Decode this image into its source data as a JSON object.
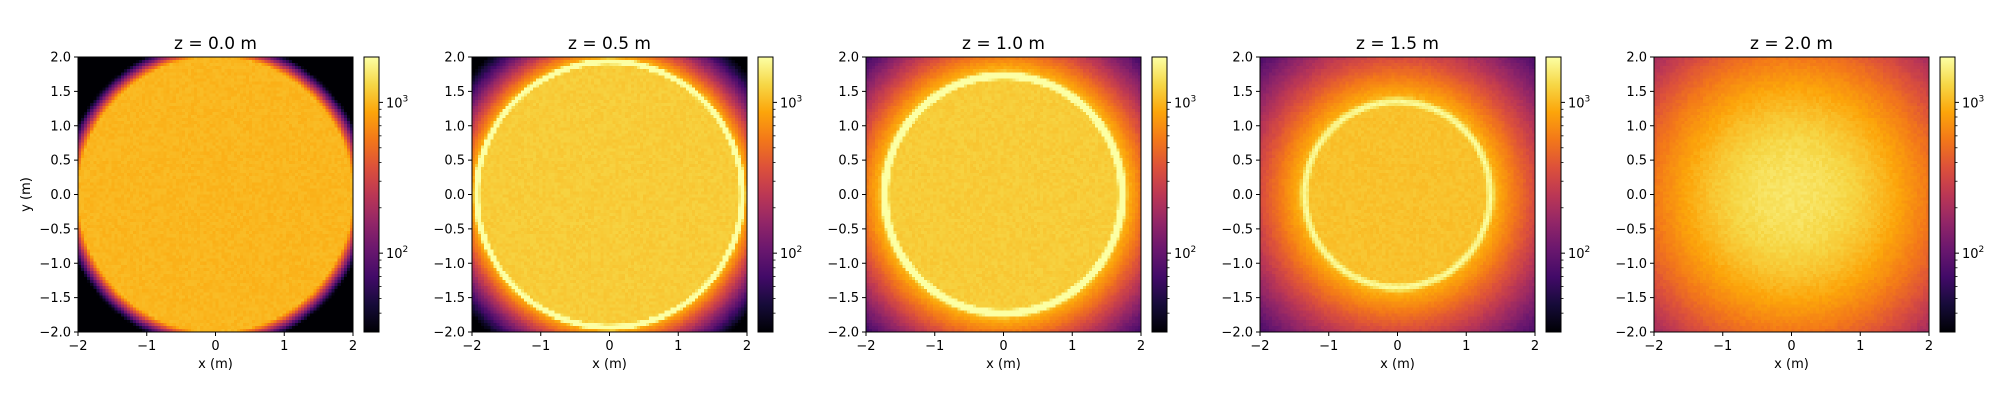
{
  "chart_data": [
    {
      "type": "heatmap",
      "title": "z = 0.0 m",
      "xlabel": "x (m)",
      "ylabel": "y (m)",
      "xlim": [
        -2,
        2
      ],
      "ylim": [
        -2,
        2
      ],
      "xticks": [
        "−2",
        "−1",
        "0",
        "1",
        "2"
      ],
      "yticks": [
        "2.0",
        "1.5",
        "1.0",
        "0.5",
        "0.0",
        "−0.5",
        "−1.0",
        "−1.5",
        "−2.0"
      ],
      "colorbar": {
        "scale": "log",
        "min": 30,
        "max": 2000,
        "ticks": [
          "10",
          "10"
        ],
        "tick_exponents": [
          "3",
          "2"
        ]
      },
      "field": {
        "plateau": 1000,
        "ring_radius": 2.0,
        "ring_width": 0.0,
        "ring_peak": 0,
        "edge_width": 0.07
      }
    },
    {
      "type": "heatmap",
      "title": "z = 0.5 m",
      "xlabel": "x (m)",
      "ylabel": "",
      "xlim": [
        -2,
        2
      ],
      "ylim": [
        -2,
        2
      ],
      "xticks": [
        "−2",
        "−1",
        "0",
        "1",
        "2"
      ],
      "yticks": [
        "2.0",
        "1.5",
        "1.0",
        "0.5",
        "0.0",
        "−0.5",
        "−1.0",
        "−1.5",
        "−2.0"
      ],
      "colorbar": {
        "scale": "log",
        "min": 30,
        "max": 2000,
        "ticks": [
          "10",
          "10"
        ],
        "tick_exponents": [
          "3",
          "2"
        ]
      },
      "field": {
        "plateau": 1200,
        "ring_radius": 1.93,
        "ring_width": 0.05,
        "ring_peak": 3000,
        "edge_width": 0.2
      }
    },
    {
      "type": "heatmap",
      "title": "z = 1.0 m",
      "xlabel": "x (m)",
      "ylabel": "",
      "xlim": [
        -2,
        2
      ],
      "ylim": [
        -2,
        2
      ],
      "xticks": [
        "−2",
        "−1",
        "0",
        "1",
        "2"
      ],
      "yticks": [
        "2.0",
        "1.5",
        "1.0",
        "0.5",
        "0.0",
        "−0.5",
        "−1.0",
        "−1.5",
        "−2.0"
      ],
      "colorbar": {
        "scale": "log",
        "min": 30,
        "max": 2000,
        "ticks": [
          "10",
          "10"
        ],
        "tick_exponents": [
          "3",
          "2"
        ]
      },
      "field": {
        "plateau": 1200,
        "ring_radius": 1.73,
        "ring_width": 0.07,
        "ring_peak": 3000,
        "edge_width": 0.38
      }
    },
    {
      "type": "heatmap",
      "title": "z = 1.5 m",
      "xlabel": "x (m)",
      "ylabel": "",
      "xlim": [
        -2,
        2
      ],
      "ylim": [
        -2,
        2
      ],
      "xticks": [
        "−2",
        "−1",
        "0",
        "1",
        "2"
      ],
      "yticks": [
        "2.0",
        "1.5",
        "1.0",
        "0.5",
        "0.0",
        "−0.5",
        "−1.0",
        "−1.5",
        "−2.0"
      ],
      "colorbar": {
        "scale": "log",
        "min": 30,
        "max": 2000,
        "ticks": [
          "10",
          "10"
        ],
        "tick_exponents": [
          "3",
          "2"
        ]
      },
      "field": {
        "plateau": 1100,
        "ring_radius": 1.35,
        "ring_width": 0.09,
        "ring_peak": 1900,
        "edge_width": 0.55
      }
    },
    {
      "type": "heatmap",
      "title": "z = 2.0 m",
      "xlabel": "x (m)",
      "ylabel": "",
      "xlim": [
        -2,
        2
      ],
      "ylim": [
        -2,
        2
      ],
      "xticks": [
        "−2",
        "−1",
        "0",
        "1",
        "2"
      ],
      "yticks": [
        "2.0",
        "1.5",
        "1.0",
        "0.5",
        "0.0",
        "−0.5",
        "−1.0",
        "−1.5",
        "−2.0"
      ],
      "colorbar": {
        "scale": "log",
        "min": 30,
        "max": 2000,
        "ticks": [
          "10",
          "10"
        ],
        "tick_exponents": [
          "3",
          "2"
        ]
      },
      "field": {
        "plateau": 1500,
        "ring_radius": 0.0,
        "ring_width": 0.0,
        "ring_peak": 0,
        "edge_width": 1.15
      }
    }
  ]
}
